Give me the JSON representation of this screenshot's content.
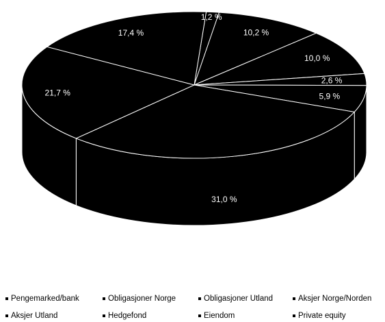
{
  "chart_data": {
    "type": "pie",
    "style": "3d",
    "categories": [
      "Pengemarked/bank",
      "Obligasjoner Norge",
      "Obligasjoner Utland",
      "Aksjer Norge/Norden",
      "Aksjer Utland",
      "Hedgefond",
      "Eiendom",
      "Private equity"
    ],
    "values": [
      1.2,
      10.2,
      10.0,
      2.6,
      5.9,
      31.0,
      21.7,
      17.4
    ],
    "labels": [
      "1,2 %",
      "10,2 %",
      "10,0 %",
      "2,6 %",
      "5,9 %",
      "31,0 %",
      "21,7 %",
      "17,4 %"
    ],
    "colors": [
      "#000000",
      "#000000",
      "#000000",
      "#000000",
      "#000000",
      "#000000",
      "#000000",
      "#000000"
    ],
    "legend_position": "bottom",
    "legend": [
      "Pengemarked/bank",
      "Obligasjoner Norge",
      "Obligasjoner Utland",
      "Aksjer Norge/Norden",
      "Aksjer Utland",
      "Hedgefond",
      "Eiendom",
      "Private equity"
    ]
  }
}
